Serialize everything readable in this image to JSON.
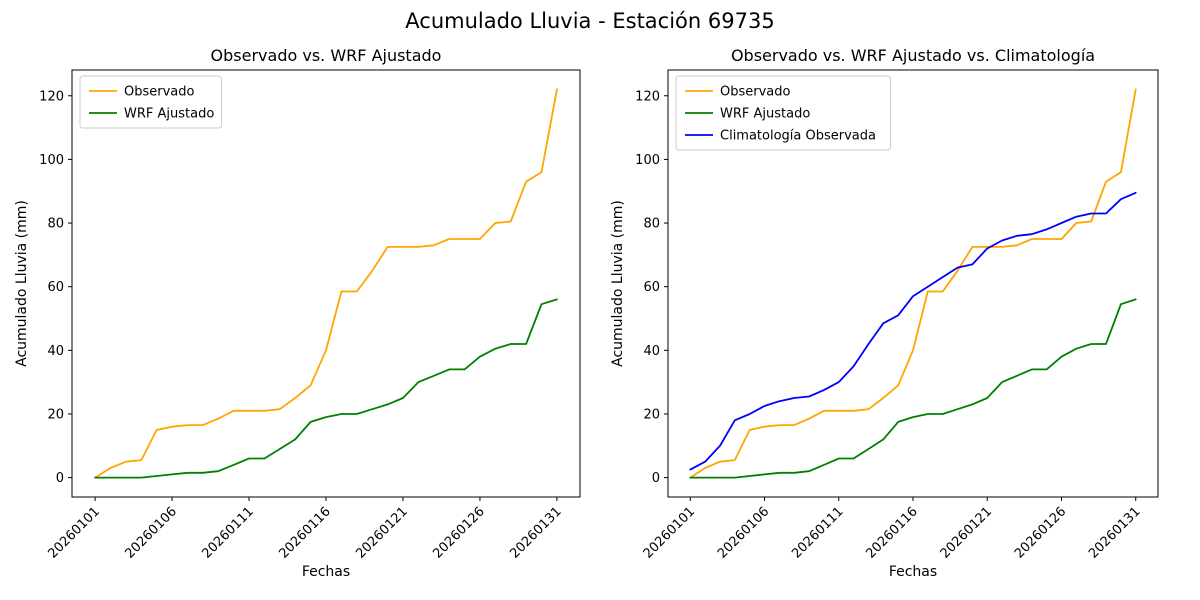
{
  "figure": {
    "title": "Acumulado Lluvia - Estación 69735"
  },
  "chart_data": [
    {
      "type": "line",
      "title": "Observado vs. WRF Ajustado",
      "xlabel": "Fechas",
      "ylabel": "Acumulado Lluvia (mm)",
      "grid": false,
      "legend_position": "upper left",
      "ylim": [
        -6.1,
        128.1
      ],
      "xlim_index": [
        -1.5,
        31.5
      ],
      "yticks": [
        0,
        20,
        40,
        60,
        80,
        100,
        120
      ],
      "x_tick_positions": [
        0,
        5,
        10,
        15,
        20,
        25,
        30
      ],
      "x_ticklabels": [
        "20260101",
        "20260106",
        "20260111",
        "20260116",
        "20260121",
        "20260126",
        "20260131"
      ],
      "x": [
        "20260101",
        "20260102",
        "20260103",
        "20260104",
        "20260105",
        "20260106",
        "20260107",
        "20260108",
        "20260109",
        "20260110",
        "20260111",
        "20260112",
        "20260113",
        "20260114",
        "20260115",
        "20260116",
        "20260117",
        "20260118",
        "20260119",
        "20260120",
        "20260121",
        "20260122",
        "20260123",
        "20260124",
        "20260125",
        "20260126",
        "20260127",
        "20260128",
        "20260129",
        "20260130",
        "20260131"
      ],
      "series": [
        {
          "name": "Observado",
          "color": "#ffa500",
          "values": [
            0,
            3,
            5,
            5.5,
            15,
            16,
            16.5,
            16.5,
            18.5,
            21,
            21,
            21,
            21.5,
            25,
            29,
            40,
            58.5,
            58.5,
            65,
            72.5,
            72.5,
            72.5,
            73,
            75,
            75,
            75,
            80,
            80.5,
            93,
            96,
            122
          ]
        },
        {
          "name": "WRF Ajustado",
          "color": "#008000",
          "values": [
            0,
            0,
            0,
            0,
            0.5,
            1,
            1.5,
            1.5,
            2,
            4,
            6,
            6,
            9,
            12,
            17.5,
            19,
            20,
            20,
            21.5,
            23,
            25,
            30,
            32,
            34,
            34,
            38,
            40.5,
            42,
            42,
            54.5,
            56
          ]
        }
      ]
    },
    {
      "type": "line",
      "title": "Observado vs. WRF Ajustado vs. Climatología",
      "xlabel": "Fechas",
      "ylabel": "Acumulado Lluvia (mm)",
      "grid": false,
      "legend_position": "upper left",
      "ylim": [
        -6.1,
        128.1
      ],
      "xlim_index": [
        -1.5,
        31.5
      ],
      "yticks": [
        0,
        20,
        40,
        60,
        80,
        100,
        120
      ],
      "x_tick_positions": [
        0,
        5,
        10,
        15,
        20,
        25,
        30
      ],
      "x_ticklabels": [
        "20260101",
        "20260106",
        "20260111",
        "20260116",
        "20260121",
        "20260126",
        "20260131"
      ],
      "x": [
        "20260101",
        "20260102",
        "20260103",
        "20260104",
        "20260105",
        "20260106",
        "20260107",
        "20260108",
        "20260109",
        "20260110",
        "20260111",
        "20260112",
        "20260113",
        "20260114",
        "20260115",
        "20260116",
        "20260117",
        "20260118",
        "20260119",
        "20260120",
        "20260121",
        "20260122",
        "20260123",
        "20260124",
        "20260125",
        "20260126",
        "20260127",
        "20260128",
        "20260129",
        "20260130",
        "20260131"
      ],
      "series": [
        {
          "name": "Observado",
          "color": "#ffa500",
          "values": [
            0,
            3,
            5,
            5.5,
            15,
            16,
            16.5,
            16.5,
            18.5,
            21,
            21,
            21,
            21.5,
            25,
            29,
            40,
            58.5,
            58.5,
            65,
            72.5,
            72.5,
            72.5,
            73,
            75,
            75,
            75,
            80,
            80.5,
            93,
            96,
            122
          ]
        },
        {
          "name": "WRF Ajustado",
          "color": "#008000",
          "values": [
            0,
            0,
            0,
            0,
            0.5,
            1,
            1.5,
            1.5,
            2,
            4,
            6,
            6,
            9,
            12,
            17.5,
            19,
            20,
            20,
            21.5,
            23,
            25,
            30,
            32,
            34,
            34,
            38,
            40.5,
            42,
            42,
            54.5,
            56
          ]
        },
        {
          "name": "Climatología Observada",
          "color": "#0000ff",
          "values": [
            2.5,
            5,
            10,
            18,
            20,
            22.5,
            24,
            25,
            25.5,
            27.5,
            30,
            35,
            42,
            48.5,
            51,
            57,
            60,
            63,
            66,
            67,
            72,
            74.5,
            76,
            76.5,
            78,
            80,
            82,
            83,
            83,
            87.5,
            89.5
          ]
        }
      ]
    }
  ]
}
